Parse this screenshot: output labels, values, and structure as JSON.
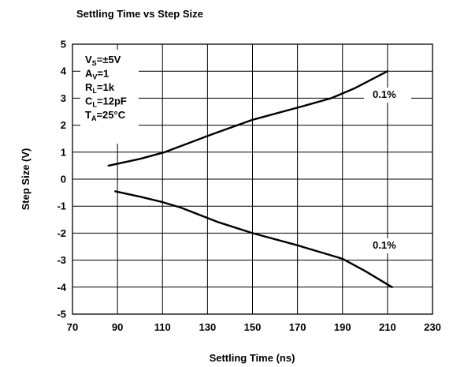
{
  "chart_data": {
    "type": "line",
    "title": "Settling Time vs Step Size",
    "xlabel": "Settling Time (ns)",
    "ylabel": "Step Size (V)",
    "xlim": [
      70,
      230
    ],
    "ylim": [
      -5,
      5
    ],
    "x_ticks": [
      "70",
      "90",
      "110",
      "130",
      "150",
      "170",
      "190",
      "210",
      "230"
    ],
    "y_ticks": [
      "5",
      "4",
      "3",
      "2",
      "1",
      "0",
      "-1",
      "-2",
      "-3",
      "-4",
      "-5"
    ],
    "grid": true,
    "conditions": [
      {
        "main": "V",
        "sub": "S",
        "rest": "=±5V"
      },
      {
        "main": "A",
        "sub": "V",
        "rest": "=1"
      },
      {
        "main": "R",
        "sub": "L",
        "rest": "=1k"
      },
      {
        "main": "C",
        "sub": "L",
        "rest": "=12pF"
      },
      {
        "main": "T",
        "sub": "A",
        "rest": "=25°C"
      }
    ],
    "series": [
      {
        "x": [
          86,
          100,
          111,
          130,
          150,
          170,
          185,
          195,
          210
        ],
        "y": [
          0.5,
          0.75,
          1.0,
          1.6,
          2.2,
          2.65,
          3.0,
          3.35,
          4.0
        ],
        "label": "0.1%"
      },
      {
        "x": [
          89,
          100,
          110,
          118,
          135,
          150,
          170,
          190,
          200,
          212
        ],
        "y": [
          -0.45,
          -0.65,
          -0.85,
          -1.05,
          -1.6,
          -2.0,
          -2.45,
          -2.95,
          -3.4,
          -4.0
        ],
        "label": "0.1%"
      }
    ]
  }
}
